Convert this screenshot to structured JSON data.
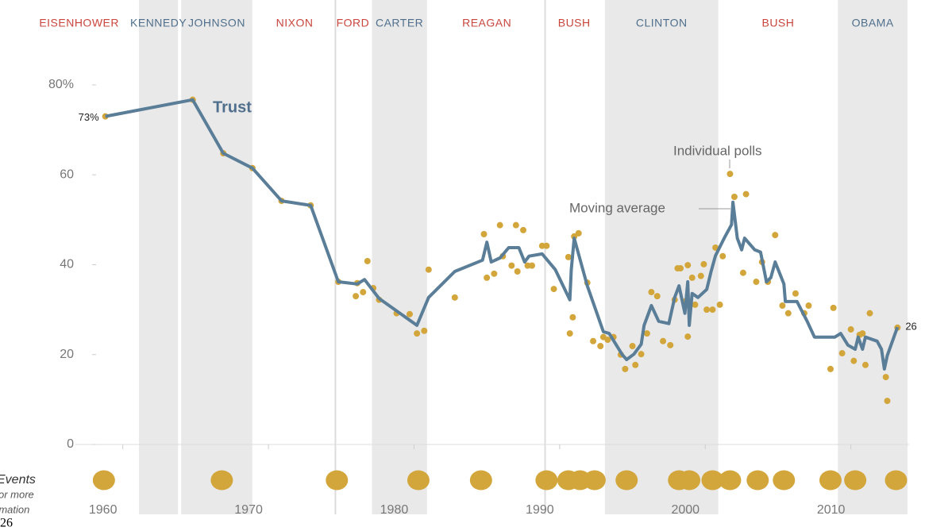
{
  "chart_data": {
    "type": "line",
    "title": "Trust",
    "xlim": [
      1958,
      2014
    ],
    "xticks": [
      1960,
      1970,
      1980,
      1990,
      2000,
      2010
    ],
    "ylim": [
      0,
      80
    ],
    "yticks": [
      0,
      20,
      40,
      60,
      {
        "value": 80,
        "label": "80%"
      }
    ],
    "grid": false,
    "presidents": [
      {
        "name": "EISENHOWER",
        "start": 1953,
        "end": 1961,
        "color": "#c9463d",
        "shaded": false
      },
      {
        "name": "KENNEDY",
        "start": 1961,
        "end": 1963.9,
        "color": "#4f6f8c",
        "shaded": true
      },
      {
        "name": "JOHNSON",
        "start": 1963.9,
        "end": 1969,
        "color": "#4f6f8c",
        "shaded": true
      },
      {
        "name": "NIXON",
        "start": 1969,
        "end": 1974.6,
        "color": "#c9463d",
        "shaded": false
      },
      {
        "name": "FORD",
        "start": 1974.6,
        "end": 1977,
        "color": "#c9463d",
        "shaded": false
      },
      {
        "name": "CARTER",
        "start": 1977,
        "end": 1981,
        "color": "#4f6f8c",
        "shaded": true
      },
      {
        "name": "REAGAN",
        "start": 1981,
        "end": 1989,
        "color": "#c9463d",
        "shaded": false
      },
      {
        "name": "BUSH",
        "start": 1989,
        "end": 1993,
        "color": "#c9463d",
        "shaded": false
      },
      {
        "name": "CLINTON",
        "start": 1993,
        "end": 2001,
        "color": "#4f6f8c",
        "shaded": true
      },
      {
        "name": "BUSH",
        "start": 2001,
        "end": 2009,
        "color": "#c9463d",
        "shaded": false
      },
      {
        "name": "OBAMA",
        "start": 2009,
        "end": 2014,
        "color": "#4f6f8c",
        "shaded": true
      }
    ],
    "series": [
      {
        "name": "Individual polls",
        "type": "scatter",
        "color": "#d3a63b",
        "x": [
          1958.8,
          1964.8,
          1966.9,
          1968.9,
          1970.9,
          1972.9,
          1974.8,
          1976.0,
          1976.1,
          1976.5,
          1976.8,
          1977.2,
          1977.6,
          1978.8,
          1979.7,
          1980.2,
          1980.7,
          1981.0,
          1982.8,
          1984.8,
          1985.0,
          1985.5,
          1985.9,
          1986.1,
          1986.7,
          1987.0,
          1987.1,
          1987.5,
          1987.8,
          1988.1,
          1988.8,
          1989.1,
          1989.6,
          1990.6,
          1990.7,
          1990.9,
          1991.0,
          1991.3,
          1991.9,
          1992.3,
          1992.8,
          1993.0,
          1993.3,
          1993.7,
          1994.2,
          1994.5,
          1995.0,
          1995.2,
          1995.6,
          1996.0,
          1996.3,
          1996.7,
          1997.1,
          1997.6,
          1997.9,
          1998.1,
          1998.3,
          1998.6,
          1998.8,
          1998.8,
          1999.1,
          1999.3,
          1999.7,
          1999.9,
          2000.1,
          2000.5,
          2000.7,
          2001.0,
          2001.2,
          2001.7,
          2002.0,
          2002.6,
          2002.8,
          2003.5,
          2003.9,
          2004.3,
          2004.8,
          2005.3,
          2005.7,
          2006.2,
          2006.8,
          2007.1,
          2008.6,
          2008.8,
          2009.4,
          2010.0,
          2010.2,
          2010.6,
          2010.8,
          2011.0,
          2011.3,
          2012.4,
          2012.5,
          2013.2
        ],
        "values": [
          73,
          76.7,
          64.8,
          61.5,
          54.2,
          53.2,
          36.2,
          33,
          35.9,
          33.9,
          40.8,
          34.8,
          32.2,
          29.2,
          29,
          24.7,
          25.3,
          38.9,
          32.7,
          46.8,
          37.1,
          38,
          48.8,
          41.9,
          39.8,
          48.8,
          38.5,
          47.7,
          39.8,
          39.8,
          44.2,
          44.2,
          34.6,
          41.7,
          24.7,
          28.3,
          46.3,
          47,
          36,
          23,
          21.9,
          23.9,
          23.3,
          23.9,
          20,
          16.8,
          21.9,
          17.7,
          20.1,
          24.7,
          33.9,
          33,
          23,
          22.1,
          32.2,
          39.2,
          39.2,
          31.8,
          39.9,
          24,
          37.1,
          31.1,
          37.5,
          40.1,
          30,
          30,
          43.8,
          31.1,
          41.9,
          60.2,
          55.1,
          38.2,
          55.7,
          36.2,
          40.6,
          36.2,
          46.6,
          30.9,
          29.2,
          33.6,
          29.2,
          30.9,
          16.8,
          30.4,
          20.3,
          25.6,
          18.6,
          24.4,
          24.7,
          17.7,
          29.2,
          15,
          9.7,
          26
        ]
      },
      {
        "name": "Moving average",
        "type": "line",
        "color": "#5a7d98",
        "x": [
          1958.8,
          1964.8,
          1966.9,
          1968.9,
          1970.9,
          1972.9,
          1974.8,
          1976.1,
          1976.6,
          1977.6,
          1980.2,
          1981.0,
          1982.8,
          1984.7,
          1985.0,
          1985.3,
          1985.9,
          1986.5,
          1987.2,
          1987.6,
          1987.9,
          1988.8,
          1989.7,
          1990.7,
          1990.8,
          1991.0,
          1991.9,
          1993.0,
          1993.4,
          1994.3,
          1994.6,
          1995.1,
          1995.6,
          1995.8,
          1996.3,
          1996.8,
          1997.5,
          1997.9,
          1998.2,
          1998.6,
          1998.8,
          1998.9,
          1999.1,
          1999.5,
          2000.1,
          2000.4,
          2000.7,
          2001.3,
          2001.8,
          2001.9,
          2002.2,
          2002.5,
          2002.7,
          2003.4,
          2003.8,
          2004.2,
          2004.5,
          2004.8,
          2005.4,
          2005.5,
          2006.3,
          2007.0,
          2007.5,
          2008.9,
          2009.3,
          2009.8,
          2010.3,
          2010.5,
          2010.8,
          2011.0,
          2011.8,
          2012.1,
          2012.3,
          2012.5,
          2013.2
        ],
        "values": [
          73,
          76.7,
          64.8,
          61.5,
          54.2,
          53.2,
          36.2,
          35.7,
          36.7,
          32.5,
          26.5,
          32.7,
          38.5,
          41,
          45,
          40.6,
          41.5,
          43.8,
          43.8,
          40.6,
          41.9,
          42.4,
          38.9,
          32.2,
          38.9,
          45.9,
          35.3,
          25.1,
          24.7,
          20,
          18.9,
          20.1,
          22.3,
          26.5,
          30.9,
          27.4,
          26.9,
          32.7,
          35.3,
          29.2,
          36.2,
          26.5,
          33.6,
          32.7,
          34.5,
          38.5,
          42,
          45.9,
          48.9,
          53.9,
          45.9,
          43.3,
          45.9,
          43.3,
          42.8,
          36.2,
          37.1,
          40.6,
          35.7,
          31.8,
          31.8,
          27.4,
          23.9,
          23.9,
          24.7,
          22.1,
          21.2,
          23.9,
          21.2,
          23.9,
          23,
          21.2,
          16.8,
          19.8,
          26.1
        ]
      }
    ],
    "annotations": [
      "73%",
      "26"
    ],
    "events": {
      "label": "Events",
      "x": [
        1958.7,
        1966.8,
        1974.7,
        1980.3,
        1984.6,
        1989.1,
        1990.6,
        1991.4,
        1992.4,
        1994.6,
        1998.2,
        1998.9,
        2000.5,
        2001.7,
        2003.6,
        2005.4,
        2008.6,
        2010.3,
        2013.1
      ],
      "color": "#d3a63b"
    },
    "footnote_lines": [
      "or more",
      "rmation"
    ],
    "corner_text": "26"
  }
}
